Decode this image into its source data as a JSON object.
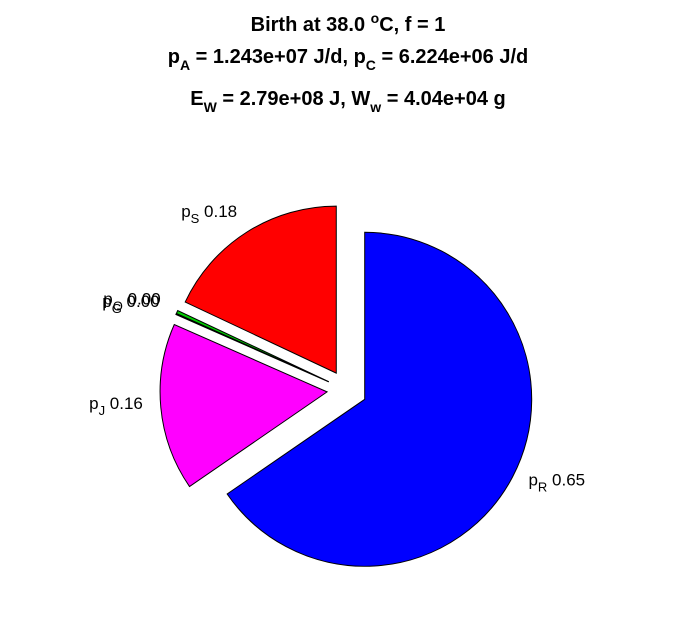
{
  "title": {
    "line1": {
      "main": "Birth at 38.0 ",
      "sup": "o",
      "rest": "C, f = 1"
    },
    "line2": {
      "a": "p",
      "a_sub": "A",
      "a_val": " = 1.243e+07 J/d, ",
      "c": "p",
      "c_sub": "C",
      "c_val": " = 6.224e+06 J/d"
    },
    "line3": {
      "e": "E",
      "e_sub": "W",
      "e_val": " = 2.79e+08 J, ",
      "w": "W",
      "w_sub": "w",
      "w_val": " = 4.04e+04 g"
    }
  },
  "chart_data": {
    "type": "pie",
    "exploded": true,
    "slices": [
      {
        "symbol": "p",
        "sub": "R",
        "value_label": "0.65",
        "fraction": 0.654,
        "color": "#0000ff"
      },
      {
        "symbol": "p",
        "sub": "J",
        "value_label": "0.16",
        "fraction": 0.162,
        "color": "#ff00ff"
      },
      {
        "symbol": "p",
        "sub": "G",
        "value_label": "0.00",
        "fraction": 0.0009,
        "color": "#000000"
      },
      {
        "symbol": "p",
        "sub": "O",
        "value_label": "0.00",
        "fraction": 0.003,
        "color": "#00cc00"
      },
      {
        "symbol": "p",
        "sub": "S",
        "value_label": "0.18",
        "fraction": 0.18,
        "color": "#ff0000"
      }
    ]
  }
}
